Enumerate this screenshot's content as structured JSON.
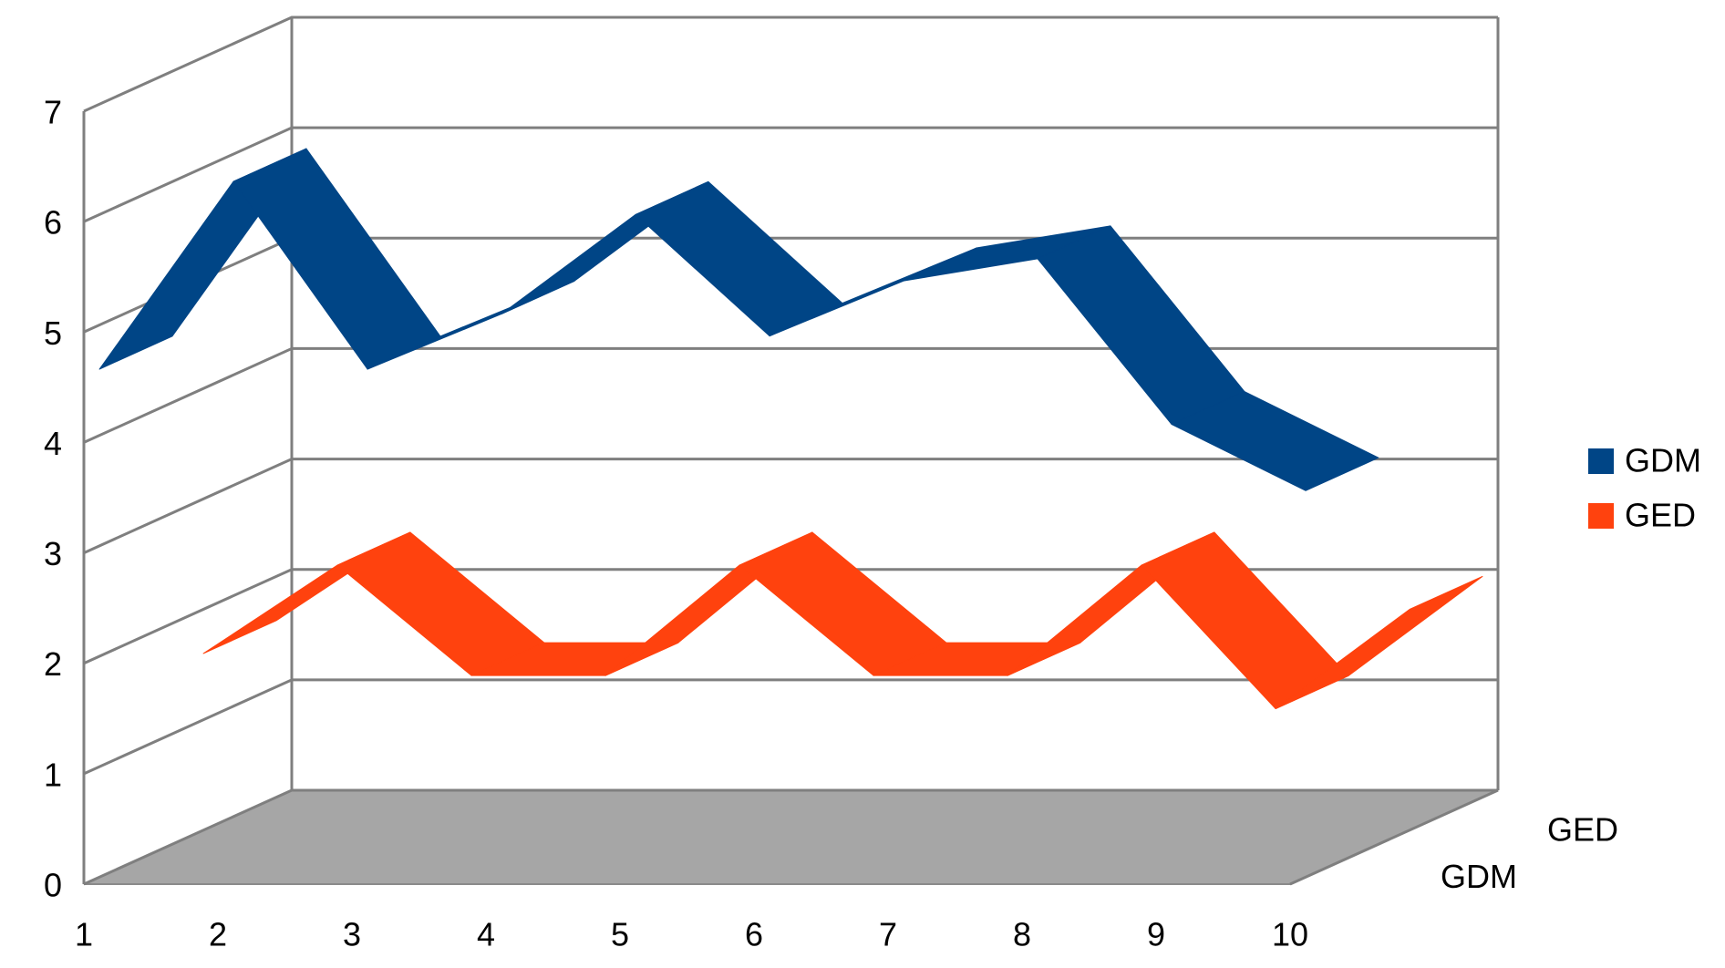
{
  "chart_data": {
    "type": "line3d",
    "categories": [
      "1",
      "2",
      "3",
      "4",
      "5",
      "6",
      "7",
      "8",
      "9",
      "10"
    ],
    "series": [
      {
        "name": "GDM",
        "color": "#004586",
        "values": [
          4.6,
          6.3,
          4.6,
          5.1,
          6.0,
          4.9,
          5.4,
          5.6,
          4.1,
          3.5
        ]
      },
      {
        "name": "GED",
        "color": "#ff420e",
        "values": [
          1.6,
          2.4,
          1.4,
          1.4,
          2.4,
          1.4,
          1.4,
          2.4,
          1.1,
          2.0
        ]
      }
    ],
    "ylim": [
      0,
      7
    ],
    "yticks": [
      0,
      1,
      2,
      3,
      4,
      5,
      6,
      7
    ],
    "grid": true,
    "legend": "right"
  }
}
